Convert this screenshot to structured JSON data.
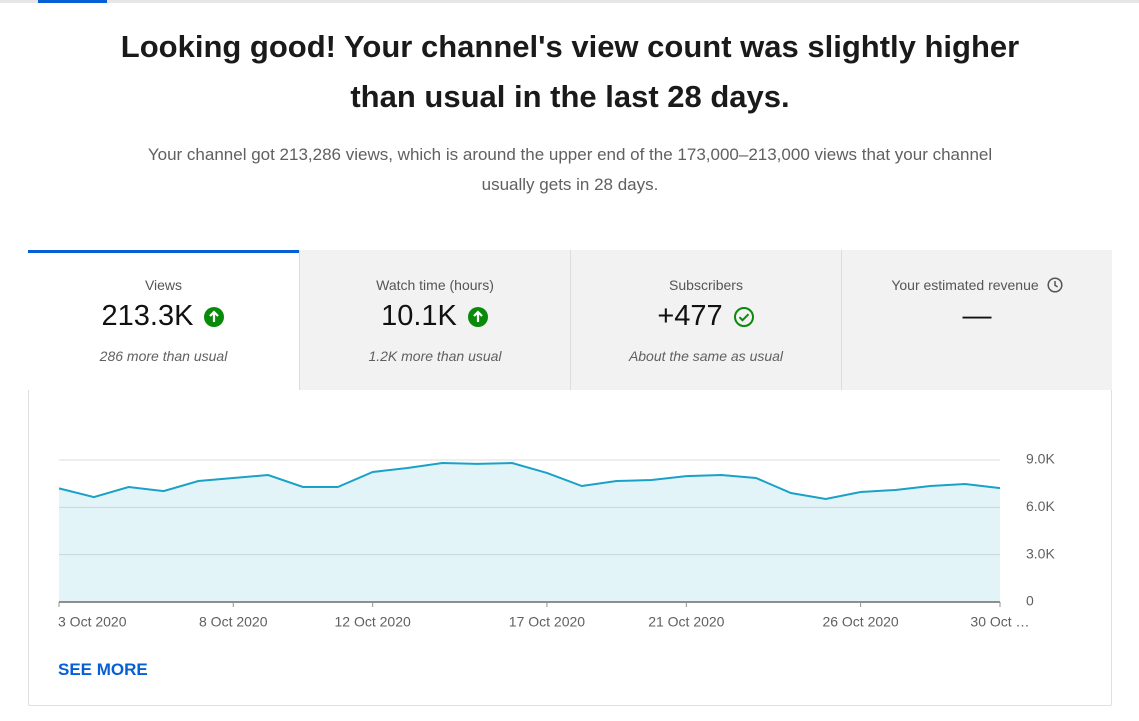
{
  "header": {
    "title": "Looking good! Your channel's view count was slightly higher than usual in the last 28 days.",
    "subtitle": "Your channel got 213,286 views, which is around the upper end of the 173,000–213,000 views that your channel usually gets in 28 days."
  },
  "tabs": [
    {
      "label": "Views",
      "value": "213.3K",
      "note": "286 more than usual"
    },
    {
      "label": "Watch time (hours)",
      "value": "10.1K",
      "note": "1.2K more than usual"
    },
    {
      "label": "Subscribers",
      "value": "+477",
      "note": "About the same as usual"
    },
    {
      "label": "Your estimated revenue",
      "value": "—"
    }
  ],
  "chart_data": {
    "type": "area",
    "categories": [
      "3 Oct 2020",
      null,
      null,
      null,
      null,
      "8 Oct 2020",
      null,
      null,
      null,
      "12 Oct 2020",
      null,
      null,
      null,
      null,
      "17 Oct 2020",
      null,
      null,
      null,
      "21 Oct 2020",
      null,
      null,
      null,
      null,
      "26 Oct 2020",
      null,
      null,
      null,
      "30 Oct …"
    ],
    "values": [
      7200,
      6650,
      7290,
      7030,
      7670,
      7860,
      8050,
      7290,
      7290,
      8240,
      8490,
      8810,
      8750,
      8810,
      8180,
      7350,
      7670,
      7730,
      7980,
      8050,
      7860,
      6910,
      6530,
      6970,
      7100,
      7350,
      7480,
      7220
    ],
    "color": "#1aa1c8",
    "ylim": [
      0,
      9000
    ],
    "yticks": [
      0,
      {
        "value": 3000,
        "label": "3.0K"
      },
      {
        "value": 6000,
        "label": "6.0K"
      },
      {
        "value": 9000,
        "label": "9.0K"
      }
    ],
    "grid": true
  },
  "link": "SEE MORE"
}
